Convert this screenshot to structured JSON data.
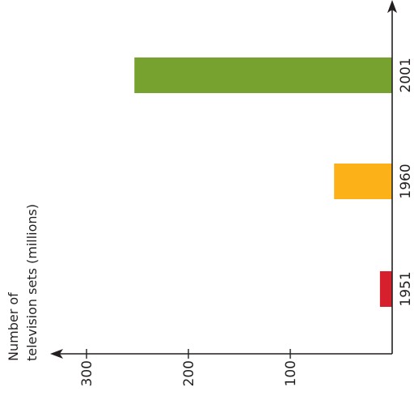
{
  "chart_data": {
    "type": "bar",
    "orientation": "horizontal",
    "categories": [
      "1951",
      "1960",
      "2001"
    ],
    "values": [
      12,
      57,
      253
    ],
    "value_axis": {
      "ticks": [
        100,
        200,
        300
      ],
      "range": [
        0,
        310
      ]
    },
    "ylabel_lines": [
      "Number of",
      "television sets (millions)"
    ],
    "colors": [
      "#d7202e",
      "#fbb117",
      "#78a22f"
    ],
    "grid": false,
    "legend": "none"
  }
}
